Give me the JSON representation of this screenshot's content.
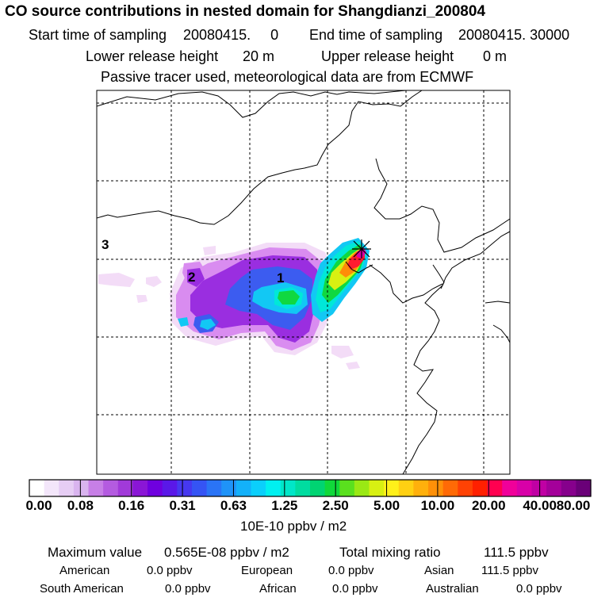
{
  "title": "CO  source contributions in nested domain for Shangdianzi_200804",
  "sampling": {
    "start_label": "Start time of sampling",
    "start_value": "20080415.     0",
    "end_label": "End time of sampling",
    "end_value": "20080415. 30000"
  },
  "release": {
    "lower_label": "Lower release height",
    "lower_value": "20 m",
    "upper_label": "Upper release height",
    "upper_value": "0 m"
  },
  "tracer_note": "Passive tracer used, meteorological data are from ECMWF",
  "region_labels": [
    "1",
    "2",
    "3"
  ],
  "chart_data": {
    "type": "heatmap",
    "title": "CO  source contributions in nested domain for Shangdianzi_200804",
    "colorbar": {
      "ticks": [
        "0.00",
        "0.08",
        "0.16",
        "0.31",
        "0.63",
        "1.25",
        "2.50",
        "5.00",
        "10.00",
        "20.00",
        "40.00",
        "80.00"
      ],
      "units": "10E-10 ppbv / m2",
      "colors": [
        "#ffffff",
        "#f3e6fa",
        "#e6cdf4",
        "#d9b4ef",
        "#c77fe6",
        "#b45be0",
        "#a13ad9",
        "#8a16d6",
        "#6f00df",
        "#5a18e8",
        "#4638f0",
        "#3554f4",
        "#2a74f6",
        "#1f93f8",
        "#13b1fa",
        "#0bcffb",
        "#00f0f0",
        "#00e6c8",
        "#00dca0",
        "#00d472",
        "#10d83a",
        "#5ae01e",
        "#9ae814",
        "#d8f012",
        "#fff01a",
        "#ffd012",
        "#ffb00c",
        "#ff9008",
        "#ff6a06",
        "#ff4204",
        "#ff2000",
        "#ff0050",
        "#f0009a",
        "#d800a8",
        "#c000a4",
        "#a4009a",
        "#86008c",
        "#6a0078"
      ]
    },
    "plume_levels": [
      {
        "level": "0.00-0.08",
        "color": "#f3dcf7"
      },
      {
        "level": "0.08-0.16",
        "color": "#d98cf0"
      },
      {
        "level": "0.16-0.31",
        "color": "#9a2ee0"
      },
      {
        "level": "0.31-0.63",
        "color": "#3c5cf0"
      },
      {
        "level": "0.63-1.25",
        "color": "#12c8f4"
      },
      {
        "level": "1.25-2.50",
        "color": "#00e8d8"
      },
      {
        "level": "2.50-5.00",
        "color": "#10d840"
      },
      {
        "level": "5.00-10.00",
        "color": "#d8f012"
      },
      {
        "level": "10.00-20.00",
        "color": "#ff8c08"
      },
      {
        "level": "20.00-40.00",
        "color": "#ff1a30"
      },
      {
        "level": "40.00-80.00",
        "color": "#d800a8"
      }
    ],
    "receptor": "Shangdianzi",
    "grid": true
  },
  "stats": {
    "max_label": "Maximum value",
    "max_value": "0.565E-08 ppbv / m2",
    "total_label": "Total mixing ratio",
    "total_value": "111.5 ppbv"
  },
  "sources": [
    {
      "name": "American",
      "value": "0.0 ppbv"
    },
    {
      "name": "European",
      "value": "0.0 ppbv"
    },
    {
      "name": "Asian",
      "value": "111.5 ppbv"
    },
    {
      "name": "South American",
      "value": "0.0 ppbv"
    },
    {
      "name": "African",
      "value": "0.0 ppbv"
    },
    {
      "name": "Australian",
      "value": "0.0 ppbv"
    }
  ]
}
